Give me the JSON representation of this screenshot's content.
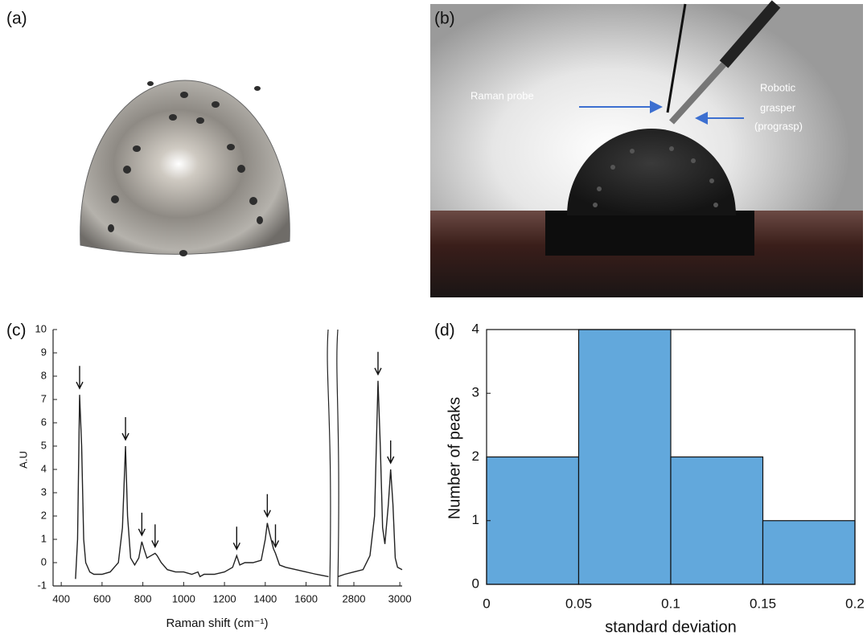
{
  "panel_labels": [
    "(a)",
    "(b)",
    "(c)",
    "(d)"
  ],
  "photo_b": {
    "probe_label": "Raman probe",
    "grasper_label": [
      "Robotic",
      "grasper",
      "(prograsp)"
    ]
  },
  "chart_data": [
    {
      "type": "line",
      "xlabel": "Raman shift (cm⁻¹)",
      "ylabel": "A.U",
      "color": "#222222",
      "x": [
        470,
        480,
        490,
        500,
        510,
        520,
        540,
        560,
        600,
        640,
        680,
        700,
        715,
        725,
        740,
        760,
        780,
        795,
        805,
        820,
        840,
        860,
        870,
        890,
        920,
        960,
        1000,
        1040,
        1070,
        1080,
        1100,
        1150,
        1200,
        1240,
        1260,
        1275,
        1300,
        1340,
        1380,
        1400,
        1410,
        1420,
        1440,
        1450,
        1470,
        1500,
        1550,
        1600,
        1650,
        1710,
        2730,
        2760,
        2800,
        2840,
        2870,
        2890,
        2905,
        2915,
        2925,
        2935,
        2950,
        2960,
        2970,
        2980,
        2990,
        3010
      ],
      "values": [
        -0.7,
        1.0,
        7.2,
        5.0,
        1.0,
        0.0,
        -0.4,
        -0.5,
        -0.5,
        -0.4,
        0.0,
        1.5,
        5.0,
        2.0,
        0.2,
        -0.1,
        0.2,
        0.9,
        0.6,
        0.2,
        0.3,
        0.4,
        0.3,
        0.0,
        -0.3,
        -0.4,
        -0.4,
        -0.5,
        -0.4,
        -0.6,
        -0.5,
        -0.5,
        -0.4,
        -0.2,
        0.3,
        -0.1,
        0.0,
        0.0,
        0.1,
        1.0,
        1.7,
        1.3,
        0.6,
        0.4,
        -0.1,
        -0.2,
        -0.3,
        -0.4,
        -0.5,
        -0.6,
        -0.6,
        -0.5,
        -0.4,
        -0.3,
        0.3,
        2.0,
        7.8,
        5.0,
        1.5,
        0.8,
        2.5,
        4.0,
        2.5,
        0.2,
        -0.2,
        -0.3
      ],
      "xlim": [
        360,
        3010
      ],
      "axis_break": [
        1720,
        2730
      ],
      "xticks": [
        400,
        600,
        800,
        1000,
        1200,
        1400,
        1600,
        2800,
        3000
      ],
      "ylim": [
        -1,
        10
      ],
      "yticks": [
        -1,
        0,
        1,
        2,
        3,
        4,
        5,
        6,
        7,
        8,
        9,
        10
      ],
      "arrows_x": [
        490,
        715,
        795,
        860,
        1260,
        1410,
        1450,
        2905,
        2960
      ]
    },
    {
      "type": "histogram",
      "xlabel": "standard deviation",
      "ylabel": "Number of peaks",
      "color": "#62a8dc",
      "bins": [
        0,
        0.05,
        0.1,
        0.15,
        0.2
      ],
      "values": [
        2,
        4,
        2,
        1
      ],
      "xlim": [
        0,
        0.2
      ],
      "xticks": [
        0,
        0.05,
        0.1,
        0.15,
        0.2
      ],
      "ylim": [
        0,
        4
      ],
      "yticks": [
        0,
        1,
        2,
        3,
        4
      ]
    }
  ]
}
